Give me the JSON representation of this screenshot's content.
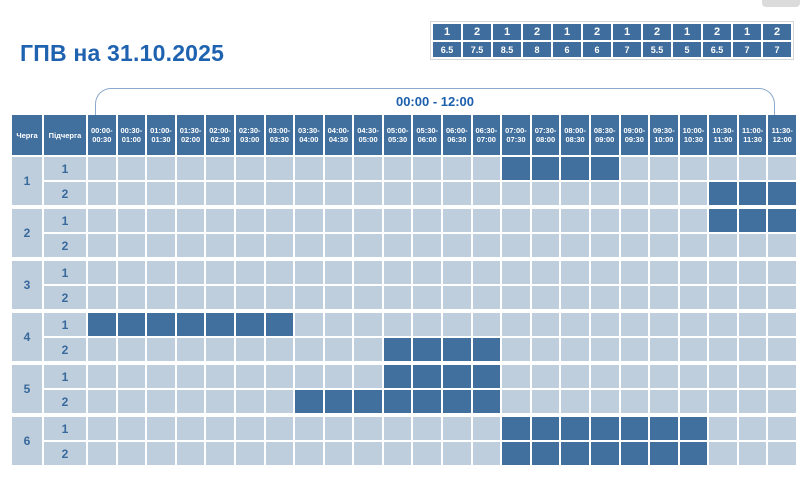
{
  "page": {
    "title": "ГПВ на 31.10.2025"
  },
  "summary_table": {
    "subqueue_row": [
      "1",
      "2",
      "1",
      "2",
      "1",
      "2",
      "1",
      "2",
      "1",
      "2",
      "1",
      "2"
    ],
    "hours_row": [
      "6.5",
      "7.5",
      "8.5",
      "8",
      "6",
      "6",
      "7",
      "5.5",
      "5",
      "6.5",
      "7",
      "7"
    ]
  },
  "schedule": {
    "bracket_label": "00:00 - 12:00",
    "cherga_header": "Черга",
    "pidcherga_header": "Підчерга",
    "time_slots": [
      [
        "00:00-",
        "00:30"
      ],
      [
        "00:30-",
        "01:00"
      ],
      [
        "01:00-",
        "01:30"
      ],
      [
        "01:30-",
        "02:00"
      ],
      [
        "02:00-",
        "02:30"
      ],
      [
        "02:30-",
        "03:00"
      ],
      [
        "03:00-",
        "03:30"
      ],
      [
        "03:30-",
        "04:00"
      ],
      [
        "04:00-",
        "04:30"
      ],
      [
        "04:30-",
        "05:00"
      ],
      [
        "05:00-",
        "05:30"
      ],
      [
        "05:30-",
        "06:00"
      ],
      [
        "06:00-",
        "06:30"
      ],
      [
        "06:30-",
        "07:00"
      ],
      [
        "07:00-",
        "07:30"
      ],
      [
        "07:30-",
        "08:00"
      ],
      [
        "08:00-",
        "08:30"
      ],
      [
        "08:30-",
        "09:00"
      ],
      [
        "09:00-",
        "09:30"
      ],
      [
        "09:30-",
        "10:00"
      ],
      [
        "10:00-",
        "10:30"
      ],
      [
        "10:30-",
        "11:00"
      ],
      [
        "11:00-",
        "11:30"
      ],
      [
        "11:30-",
        "12:00"
      ]
    ],
    "groups": [
      {
        "cherga": "1",
        "rows": [
          {
            "pidcherga": "1",
            "filled": [
              14,
              15,
              16,
              17
            ]
          },
          {
            "pidcherga": "2",
            "filled": [
              21,
              22,
              23
            ]
          }
        ]
      },
      {
        "cherga": "2",
        "rows": [
          {
            "pidcherga": "1",
            "filled": [
              21,
              22,
              23
            ]
          },
          {
            "pidcherga": "2",
            "filled": []
          }
        ]
      },
      {
        "cherga": "3",
        "rows": [
          {
            "pidcherga": "1",
            "filled": []
          },
          {
            "pidcherga": "2",
            "filled": []
          }
        ]
      },
      {
        "cherga": "4",
        "rows": [
          {
            "pidcherga": "1",
            "filled": [
              0,
              1,
              2,
              3,
              4,
              5,
              6
            ]
          },
          {
            "pidcherga": "2",
            "filled": [
              10,
              11,
              12,
              13
            ]
          }
        ]
      },
      {
        "cherga": "5",
        "rows": [
          {
            "pidcherga": "1",
            "filled": [
              10,
              11,
              12,
              13
            ]
          },
          {
            "pidcherga": "2",
            "filled": [
              7,
              8,
              9,
              10,
              11,
              12,
              13
            ]
          }
        ]
      },
      {
        "cherga": "6",
        "rows": [
          {
            "pidcherga": "1",
            "filled": [
              14,
              15,
              16,
              17,
              18,
              19,
              20
            ]
          },
          {
            "pidcherga": "2",
            "filled": [
              14,
              15,
              16,
              17,
              18,
              19,
              20
            ]
          }
        ]
      }
    ]
  },
  "chart_data": {
    "type": "heatmap",
    "title": "ГПВ на 31.10.2025",
    "time_range_label": "00:00 - 12:00",
    "columns": [
      "00:00-00:30",
      "00:30-01:00",
      "01:00-01:30",
      "01:30-02:00",
      "02:00-02:30",
      "02:30-03:00",
      "03:00-03:30",
      "03:30-04:00",
      "04:00-04:30",
      "04:30-05:00",
      "05:00-05:30",
      "05:30-06:00",
      "06:00-06:30",
      "06:30-07:00",
      "07:00-07:30",
      "07:30-08:00",
      "08:00-08:30",
      "08:30-09:00",
      "09:00-09:30",
      "09:30-10:00",
      "10:00-10:30",
      "10:30-11:00",
      "11:00-11:30",
      "11:30-12:00"
    ],
    "rows": [
      {
        "cherga": 1,
        "pidcherga": 1,
        "outage_intervals": [
          "07:00-09:00"
        ]
      },
      {
        "cherga": 1,
        "pidcherga": 2,
        "outage_intervals": [
          "10:30-12:00"
        ]
      },
      {
        "cherga": 2,
        "pidcherga": 1,
        "outage_intervals": [
          "10:30-12:00"
        ]
      },
      {
        "cherga": 2,
        "pidcherga": 2,
        "outage_intervals": []
      },
      {
        "cherga": 3,
        "pidcherga": 1,
        "outage_intervals": []
      },
      {
        "cherga": 3,
        "pidcherga": 2,
        "outage_intervals": []
      },
      {
        "cherga": 4,
        "pidcherga": 1,
        "outage_intervals": [
          "00:00-03:30"
        ]
      },
      {
        "cherga": 4,
        "pidcherga": 2,
        "outage_intervals": [
          "05:00-07:00"
        ]
      },
      {
        "cherga": 5,
        "pidcherga": 1,
        "outage_intervals": [
          "05:00-07:00"
        ]
      },
      {
        "cherga": 5,
        "pidcherga": 2,
        "outage_intervals": [
          "03:30-07:00"
        ]
      },
      {
        "cherga": 6,
        "pidcherga": 1,
        "outage_intervals": [
          "07:00-10:30"
        ]
      },
      {
        "cherga": 6,
        "pidcherga": 2,
        "outage_intervals": [
          "07:00-10:30"
        ]
      }
    ],
    "summary": {
      "subqueue": [
        1,
        2,
        1,
        2,
        1,
        2,
        1,
        2,
        1,
        2,
        1,
        2
      ],
      "hours": [
        6.5,
        7.5,
        8.5,
        8,
        6,
        6,
        7,
        5.5,
        5,
        6.5,
        7,
        7
      ]
    }
  },
  "colors": {
    "fill_blue": "#41709F",
    "empty_cell": "#BFCEDC",
    "title_blue": "#1F63B0",
    "bracket_line": "#8AA9CC"
  }
}
